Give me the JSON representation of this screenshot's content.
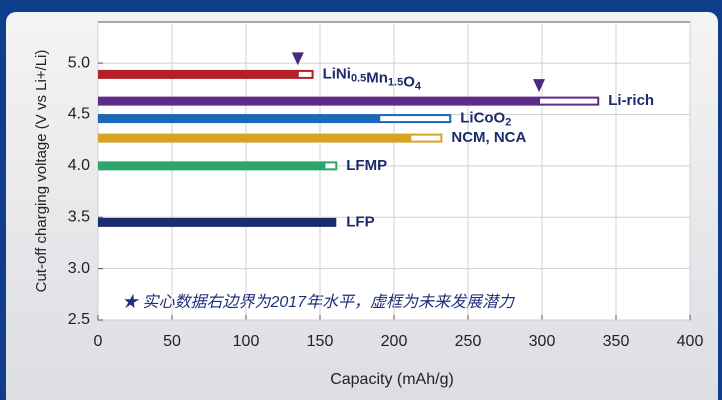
{
  "chart_data": {
    "type": "floating-bar",
    "xlabel": "Capacity (mAh/g)",
    "ylabel": "Cut-off charging voltage (V vs Li+/Li)",
    "annotation": "★ 实心数据右边界为2017年水平，虚框为未来发展潜力",
    "xlim": [
      0,
      400
    ],
    "xticks": [
      0,
      50,
      100,
      150,
      200,
      250,
      300,
      350,
      400
    ],
    "ylim": [
      2.5,
      5.4
    ],
    "yticks": [
      2.5,
      {
        "value": 3,
        "label": "3.0"
      },
      3.5,
      {
        "value": 4,
        "label": "4.0"
      },
      4.5,
      {
        "value": 5,
        "label": "5.0"
      }
    ],
    "grid": true,
    "series": [
      {
        "name": "LiNi0.5Mn1.5O4",
        "color": "#b3202a",
        "voltage": 4.89,
        "start": 0,
        "current": 135,
        "potential": 145,
        "marker": true
      },
      {
        "name": "Li-rich",
        "color": "#5c2c86",
        "voltage": 4.63,
        "start": 0,
        "current": 298,
        "potential": 338,
        "marker": true
      },
      {
        "name": "LiCoO2",
        "color": "#1b68b6",
        "voltage": 4.46,
        "start": 0,
        "current": 190,
        "potential": 238,
        "marker": false
      },
      {
        "name": "NCM, NCA",
        "color": "#d8a320",
        "voltage": 4.27,
        "start": 0,
        "current": 211,
        "potential": 232,
        "marker": false
      },
      {
        "name": "LFMP",
        "color": "#2ca66c",
        "voltage": 4.0,
        "start": 0,
        "current": 153,
        "potential": 161,
        "marker": false
      },
      {
        "name": "LFP",
        "color": "#1b2d6e",
        "voltage": 3.45,
        "start": 0,
        "current": 161,
        "potential": 161,
        "marker": false
      }
    ]
  }
}
